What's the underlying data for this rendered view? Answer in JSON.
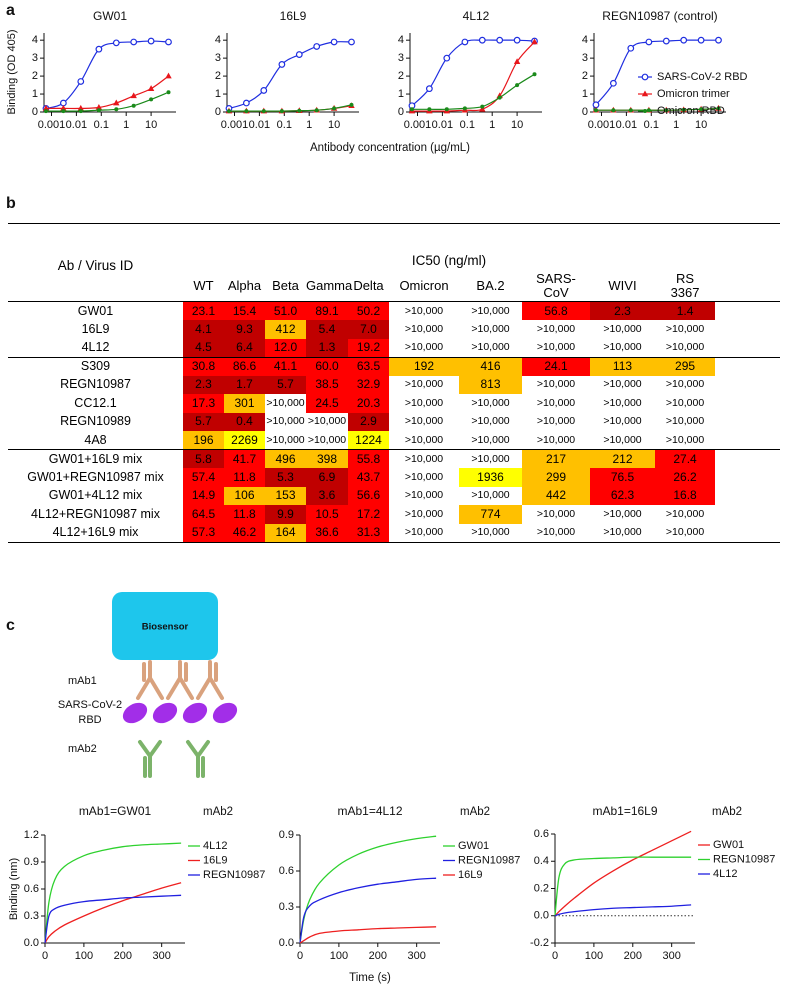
{
  "figure": {
    "panel_labels": [
      "a",
      "b",
      "c"
    ],
    "concentration_label": "Antibody concentration (µg/mL)",
    "time_label": "Time (s)"
  },
  "chart_data": [
    {
      "type": "line",
      "title": "GW01",
      "y_label": "Binding (OD 405)",
      "xscale": "log",
      "x": [
        0.0006,
        0.003,
        0.015,
        0.08,
        0.4,
        2,
        10,
        50
      ],
      "xlim": [
        0.0005,
        100
      ],
      "xticks": [
        0.001,
        0.01,
        0.1,
        1,
        10
      ],
      "ylim": [
        0,
        4.4
      ],
      "yticks": [
        0,
        1,
        2,
        3,
        4
      ],
      "series": [
        {
          "color": "#1f2ee0",
          "marker": "circle",
          "values": [
            0.2,
            0.5,
            1.7,
            3.5,
            3.85,
            3.9,
            3.95,
            3.9
          ]
        },
        {
          "color": "#e8161b",
          "marker": "triangle",
          "values": [
            0.2,
            0.2,
            0.2,
            0.25,
            0.5,
            0.9,
            1.3,
            2.0
          ]
        },
        {
          "color": "#1a8a1a",
          "marker": "dot",
          "values": [
            0.05,
            0.05,
            0.05,
            0.1,
            0.15,
            0.35,
            0.7,
            1.1
          ]
        }
      ]
    },
    {
      "type": "line",
      "title": "16L9",
      "xscale": "log",
      "x": [
        0.0006,
        0.003,
        0.015,
        0.08,
        0.4,
        2,
        10,
        50
      ],
      "xlim": [
        0.0005,
        100
      ],
      "xticks": [
        0.001,
        0.01,
        0.1,
        1,
        10
      ],
      "ylim": [
        0,
        4.4
      ],
      "yticks": [
        0,
        1,
        2,
        3,
        4
      ],
      "series": [
        {
          "color": "#1f2ee0",
          "marker": "circle",
          "values": [
            0.2,
            0.5,
            1.2,
            2.65,
            3.2,
            3.65,
            3.9,
            3.9
          ]
        },
        {
          "color": "#e8161b",
          "marker": "triangle",
          "values": [
            0.05,
            0.05,
            0.05,
            0.05,
            0.07,
            0.1,
            0.2,
            0.35
          ]
        },
        {
          "color": "#1a8a1a",
          "marker": "dot",
          "values": [
            0.05,
            0.05,
            0.05,
            0.05,
            0.07,
            0.1,
            0.2,
            0.4
          ]
        }
      ]
    },
    {
      "type": "line",
      "title": "4L12",
      "xscale": "log",
      "x": [
        0.0006,
        0.003,
        0.015,
        0.08,
        0.4,
        2,
        10,
        50
      ],
      "xlim": [
        0.0005,
        100
      ],
      "xticks": [
        0.001,
        0.01,
        0.1,
        1,
        10
      ],
      "ylim": [
        0,
        4.4
      ],
      "yticks": [
        0,
        1,
        2,
        3,
        4
      ],
      "series": [
        {
          "color": "#1f2ee0",
          "marker": "circle",
          "values": [
            0.35,
            1.3,
            3.0,
            3.9,
            4.0,
            4.0,
            4.0,
            3.95
          ]
        },
        {
          "color": "#e8161b",
          "marker": "triangle",
          "values": [
            0.05,
            0.05,
            0.05,
            0.1,
            0.15,
            0.9,
            2.8,
            3.9
          ]
        },
        {
          "color": "#1a8a1a",
          "marker": "dot",
          "values": [
            0.15,
            0.15,
            0.15,
            0.2,
            0.3,
            0.8,
            1.5,
            2.1
          ]
        }
      ]
    },
    {
      "type": "line",
      "title": "REGN10987 (control)",
      "xscale": "log",
      "legend": "right",
      "x": [
        0.0006,
        0.003,
        0.015,
        0.08,
        0.4,
        2,
        10,
        50
      ],
      "xlim": [
        0.0005,
        100
      ],
      "xticks": [
        0.001,
        0.01,
        0.1,
        1,
        10
      ],
      "ylim": [
        0,
        4.4
      ],
      "yticks": [
        0,
        1,
        2,
        3,
        4
      ],
      "series": [
        {
          "name": "SARS-CoV-2 RBD",
          "color": "#1f2ee0",
          "marker": "circle",
          "values": [
            0.4,
            1.6,
            3.55,
            3.9,
            3.95,
            4.0,
            4.0,
            4.0
          ]
        },
        {
          "name": "Omicron trimer",
          "color": "#e8161b",
          "marker": "triangle",
          "values": [
            0.1,
            0.1,
            0.1,
            0.1,
            0.1,
            0.12,
            0.15,
            0.2
          ]
        },
        {
          "name": "Omicron RBD",
          "color": "#1a8a1a",
          "marker": "dot",
          "values": [
            0.1,
            0.1,
            0.1,
            0.1,
            0.1,
            0.12,
            0.15,
            0.2
          ]
        }
      ]
    },
    {
      "type": "line",
      "title": "mAb1=GW01",
      "legend_title": "mAb2",
      "legend": "right",
      "y_label": "Binding (nm)",
      "x": [
        0,
        10,
        25,
        50,
        100,
        150,
        200,
        250,
        300,
        350
      ],
      "xlim": [
        0,
        360
      ],
      "xticks": [
        0,
        100,
        200,
        300
      ],
      "ylim": [
        0,
        1.2
      ],
      "yticks": [
        {
          "value": 0,
          "label": "0.0"
        },
        0.3,
        0.6,
        0.9,
        1.2
      ],
      "series": [
        {
          "name": "4L12",
          "color": "#2ed12e",
          "values": [
            0,
            0.45,
            0.7,
            0.85,
            0.97,
            1.03,
            1.07,
            1.09,
            1.1,
            1.11
          ]
        },
        {
          "name": "16L9",
          "color": "#ee2020",
          "values": [
            0,
            0.07,
            0.13,
            0.2,
            0.3,
            0.39,
            0.47,
            0.54,
            0.61,
            0.67
          ]
        },
        {
          "name": "REGN10987",
          "color": "#2020e0",
          "values": [
            0,
            0.3,
            0.38,
            0.42,
            0.46,
            0.48,
            0.5,
            0.51,
            0.52,
            0.53
          ]
        }
      ]
    },
    {
      "type": "line",
      "title": "mAb1=4L12",
      "legend_title": "mAb2",
      "legend": "right",
      "x": [
        0,
        10,
        25,
        50,
        100,
        150,
        200,
        250,
        300,
        350
      ],
      "xlim": [
        0,
        360
      ],
      "xticks": [
        0,
        100,
        200,
        300
      ],
      "ylim": [
        0,
        0.9
      ],
      "yticks": [
        {
          "value": 0,
          "label": "0.0"
        },
        0.3,
        0.6,
        0.9
      ],
      "series": [
        {
          "name": "GW01",
          "color": "#2ed12e",
          "values": [
            0,
            0.2,
            0.36,
            0.5,
            0.65,
            0.74,
            0.8,
            0.84,
            0.87,
            0.89
          ]
        },
        {
          "name": "REGN10987",
          "color": "#2020e0",
          "values": [
            0,
            0.22,
            0.31,
            0.36,
            0.42,
            0.46,
            0.49,
            0.51,
            0.53,
            0.54
          ]
        },
        {
          "name": "16L9",
          "color": "#ee2020",
          "values": [
            0,
            0.02,
            0.05,
            0.08,
            0.1,
            0.11,
            0.12,
            0.125,
            0.13,
            0.135
          ]
        }
      ]
    },
    {
      "type": "line",
      "title": "mAb1=16L9",
      "legend_title": "mAb2",
      "legend": "right",
      "hline": 0,
      "hline_style": "dotted",
      "x": [
        0,
        10,
        25,
        50,
        100,
        150,
        200,
        250,
        300,
        350
      ],
      "xlim": [
        0,
        360
      ],
      "xticks": [
        0,
        100,
        200,
        300
      ],
      "ylim": [
        -0.2,
        0.6
      ],
      "yticks": [
        -0.2,
        {
          "value": 0,
          "label": "0.0"
        },
        0.2,
        0.4,
        0.6
      ],
      "series": [
        {
          "name": "GW01",
          "color": "#ee2020",
          "values": [
            0,
            0.03,
            0.07,
            0.13,
            0.24,
            0.33,
            0.41,
            0.48,
            0.55,
            0.62
          ]
        },
        {
          "name": "REGN10987",
          "color": "#2ed12e",
          "values": [
            0,
            0.28,
            0.38,
            0.41,
            0.42,
            0.425,
            0.43,
            0.43,
            0.43,
            0.43
          ]
        },
        {
          "name": "4L12",
          "color": "#2020e0",
          "values": [
            0,
            0.01,
            0.02,
            0.03,
            0.045,
            0.055,
            0.06,
            0.065,
            0.07,
            0.08
          ]
        }
      ]
    }
  ],
  "table": {
    "corner": "Ab / Virus ID",
    "group_header": "IC50 (ng/ml)",
    "columns": [
      "WT",
      "Alpha",
      "Beta",
      "Gamma",
      "Delta",
      "Omicron",
      "BA.2",
      "SARS-\nCoV",
      "WIVI",
      "RS\n3367"
    ],
    "groups": [
      [
        {
          "name": "GW01",
          "values": [
            "23.1",
            "15.4",
            "51.0",
            "89.1",
            "50.2",
            ">10,000",
            ">10,000",
            "56.8",
            "2.3",
            "1.4"
          ],
          "colors": [
            "#ff0000",
            "#ff0000",
            "#ff0000",
            "#ff0000",
            "#ff0000",
            "#ffffff",
            "#ffffff",
            "#ff0000",
            "#c00000",
            "#c00000"
          ]
        },
        {
          "name": "16L9",
          "values": [
            "4.1",
            "9.3",
            "412",
            "5.4",
            "7.0",
            ">10,000",
            ">10,000",
            ">10,000",
            ">10,000",
            ">10,000"
          ],
          "colors": [
            "#c00000",
            "#c00000",
            "#ffc000",
            "#c00000",
            "#c00000",
            "#ffffff",
            "#ffffff",
            "#ffffff",
            "#ffffff",
            "#ffffff"
          ]
        },
        {
          "name": "4L12",
          "values": [
            "4.5",
            "6.4",
            "12.0",
            "1.3",
            "19.2",
            ">10,000",
            ">10,000",
            ">10,000",
            ">10,000",
            ">10,000"
          ],
          "colors": [
            "#c00000",
            "#c00000",
            "#ff0000",
            "#c00000",
            "#ff0000",
            "#ffffff",
            "#ffffff",
            "#ffffff",
            "#ffffff",
            "#ffffff"
          ]
        }
      ],
      [
        {
          "name": "S309",
          "values": [
            "30.8",
            "86.6",
            "41.1",
            "60.0",
            "63.5",
            "192",
            "416",
            "24.1",
            "113",
            "295"
          ],
          "colors": [
            "#ff0000",
            "#ff0000",
            "#ff0000",
            "#ff0000",
            "#ff0000",
            "#ffc000",
            "#ffc000",
            "#ff0000",
            "#ffc000",
            "#ffc000"
          ]
        },
        {
          "name": "REGN10987",
          "values": [
            "2.3",
            "1.7",
            "5.7",
            "38.5",
            "32.9",
            ">10,000",
            "813",
            ">10,000",
            ">10,000",
            ">10,000"
          ],
          "colors": [
            "#c00000",
            "#c00000",
            "#c00000",
            "#ff0000",
            "#ff0000",
            "#ffffff",
            "#ffc000",
            "#ffffff",
            "#ffffff",
            "#ffffff"
          ]
        },
        {
          "name": "CC12.1",
          "values": [
            "17.3",
            "301",
            ">10,000",
            "24.5",
            "20.3",
            ">10,000",
            ">10,000",
            ">10,000",
            ">10,000",
            ">10,000"
          ],
          "colors": [
            "#ff0000",
            "#ffc000",
            "#ffffff",
            "#ff0000",
            "#ff0000",
            "#ffffff",
            "#ffffff",
            "#ffffff",
            "#ffffff",
            "#ffffff"
          ]
        },
        {
          "name": "REGN10989",
          "values": [
            "5.7",
            "0.4",
            ">10,000",
            ">10,000",
            "2.9",
            ">10,000",
            ">10,000",
            ">10,000",
            ">10,000",
            ">10,000"
          ],
          "colors": [
            "#c00000",
            "#c00000",
            "#ffffff",
            "#ffffff",
            "#c00000",
            "#ffffff",
            "#ffffff",
            "#ffffff",
            "#ffffff",
            "#ffffff"
          ]
        },
        {
          "name": "4A8",
          "values": [
            "196",
            "2269",
            ">10,000",
            ">10,000",
            "1224",
            ">10,000",
            ">10,000",
            ">10,000",
            ">10,000",
            ">10,000"
          ],
          "colors": [
            "#ffc000",
            "#ffff00",
            "#ffffff",
            "#ffffff",
            "#ffff00",
            "#ffffff",
            "#ffffff",
            "#ffffff",
            "#ffffff",
            "#ffffff"
          ]
        }
      ],
      [
        {
          "name": "GW01+16L9 mix",
          "values": [
            "5.8",
            "41.7",
            "496",
            "398",
            "55.8",
            ">10,000",
            ">10,000",
            "217",
            "212",
            "27.4"
          ],
          "colors": [
            "#c00000",
            "#ff0000",
            "#ffc000",
            "#ffc000",
            "#ff0000",
            "#ffffff",
            "#ffffff",
            "#ffc000",
            "#ffc000",
            "#ff0000"
          ]
        },
        {
          "name": "GW01+REGN10987 mix",
          "values": [
            "57.4",
            "11.8",
            "5.3",
            "6.9",
            "43.7",
            ">10,000",
            "1936",
            "299",
            "76.5",
            "26.2"
          ],
          "colors": [
            "#ff0000",
            "#ff0000",
            "#c00000",
            "#c00000",
            "#ff0000",
            "#ffffff",
            "#ffff00",
            "#ffc000",
            "#ff0000",
            "#ff0000"
          ]
        },
        {
          "name": "GW01+4L12 mix",
          "values": [
            "14.9",
            "106",
            "153",
            "3.6",
            "56.6",
            ">10,000",
            ">10,000",
            "442",
            "62.3",
            "16.8"
          ],
          "colors": [
            "#ff0000",
            "#ffc000",
            "#ffc000",
            "#c00000",
            "#ff0000",
            "#ffffff",
            "#ffffff",
            "#ffc000",
            "#ff0000",
            "#ff0000"
          ]
        },
        {
          "name": "4L12+REGN10987 mix",
          "values": [
            "64.5",
            "11.8",
            "9.9",
            "10.5",
            "17.2",
            ">10,000",
            "774",
            ">10,000",
            ">10,000",
            ">10,000"
          ],
          "colors": [
            "#ff0000",
            "#ff0000",
            "#c00000",
            "#ff0000",
            "#ff0000",
            "#ffffff",
            "#ffc000",
            "#ffffff",
            "#ffffff",
            "#ffffff"
          ]
        },
        {
          "name": "4L12+16L9 mix",
          "values": [
            "57.3",
            "46.2",
            "164",
            "36.6",
            "31.3",
            ">10,000",
            ">10,000",
            ">10,000",
            ">10,000",
            ">10,000"
          ],
          "colors": [
            "#ff0000",
            "#ff0000",
            "#ffc000",
            "#ff0000",
            "#ff0000",
            "#ffffff",
            "#ffffff",
            "#ffffff",
            "#ffffff",
            "#ffffff"
          ]
        }
      ]
    ]
  },
  "diagram": {
    "sensor": "Biosensor",
    "mab1": "mAb1",
    "rbd": [
      "SARS-CoV-2",
      "RBD"
    ],
    "mab2": "mAb2"
  }
}
